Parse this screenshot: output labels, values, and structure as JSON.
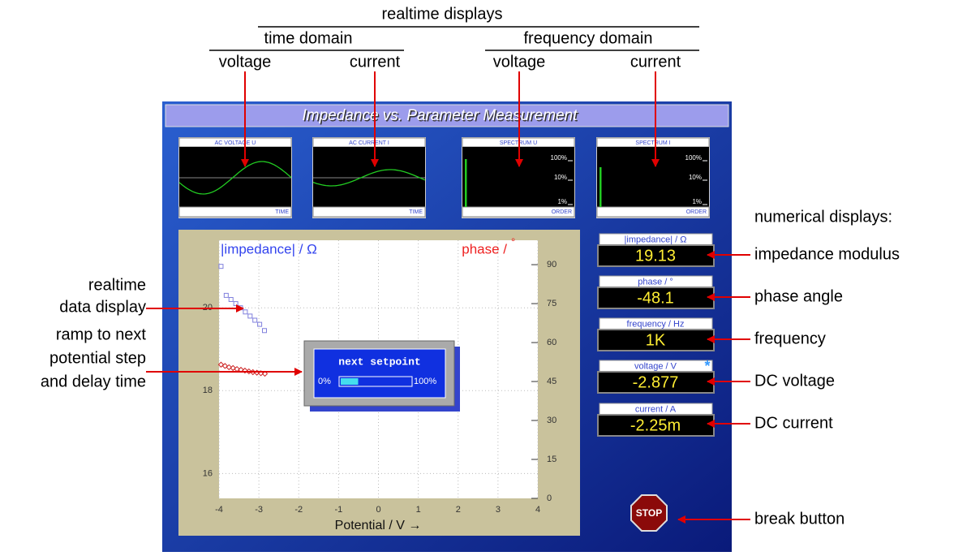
{
  "annotations": {
    "top": {
      "realtime": "realtime displays",
      "time_domain": "time domain",
      "frequency_domain": "frequency domain",
      "labels": [
        "voltage",
        "current",
        "voltage",
        "current"
      ]
    },
    "left": {
      "data_display": [
        "realtime",
        "data display"
      ],
      "ramp": [
        "ramp to next",
        "potential step",
        "and delay time"
      ]
    },
    "right": {
      "heading": "numerical displays:",
      "labels": [
        "impedance modulus",
        "phase angle",
        "frequency",
        "DC voltage",
        "DC current"
      ],
      "button": "break button"
    }
  },
  "window": {
    "title": "Impedance vs. Parameter Measurement",
    "mini_displays": [
      {
        "title": "AC VOLTAGE U",
        "footer": "TIME"
      },
      {
        "title": "AC CURRENT I",
        "footer": "TIME"
      },
      {
        "title": "SPECTRUM U",
        "footer": "ORDER",
        "ticks": [
          "100%",
          "10%",
          "1%"
        ]
      },
      {
        "title": "SPECTRUM I",
        "footer": "ORDER",
        "ticks": [
          "100%",
          "10%",
          "1%"
        ]
      }
    ],
    "readouts": [
      {
        "label": "|impedance| / Ω",
        "value": "19.13"
      },
      {
        "label": "phase / °",
        "value": "-48.1"
      },
      {
        "label": "frequency / Hz",
        "value": "1K"
      },
      {
        "label": "voltage / V",
        "value": "-2.877"
      },
      {
        "label": "current / A",
        "value": "-2.25m"
      }
    ],
    "asterisk": "*",
    "stop": "STOP"
  },
  "setpoint": {
    "title": "next setpoint",
    "min": "0%",
    "max": "100%",
    "progress": 25
  },
  "chart_data": {
    "type": "scatter",
    "ylabel": "|impedance| / Ω",
    "y2label": "phase /",
    "y2unit": "°",
    "xlabel": "Potential / V →",
    "xlim": [
      -4,
      4
    ],
    "xticks": [
      -4,
      -3,
      -2,
      -1,
      0,
      1,
      2,
      3,
      4
    ],
    "ylim": [
      15.4,
      21.63
    ],
    "yticks": [
      16,
      18,
      20
    ],
    "y2lim": [
      0,
      99.4
    ],
    "y2ticks": [
      0,
      15,
      30,
      45,
      60,
      75,
      90
    ],
    "grid": true,
    "series": [
      {
        "color": "#8080dd",
        "marker": "square",
        "x": [
          -3.95,
          -3.82,
          -3.7,
          -3.58,
          -3.46,
          -3.34,
          -3.22,
          -3.1,
          -2.98,
          -2.86
        ],
        "values": [
          21.0,
          20.3,
          20.2,
          20.1,
          20.0,
          19.9,
          19.8,
          19.7,
          19.6,
          19.45
        ]
      },
      {
        "color": "#cc2222",
        "marker": "diamond",
        "axis": "y2",
        "x": [
          -3.95,
          -3.85,
          -3.75,
          -3.65,
          -3.55,
          -3.45,
          -3.35,
          -3.25,
          -3.15,
          -3.05,
          -2.95,
          -2.85
        ],
        "values": [
          51.5,
          51.0,
          50.5,
          50.2,
          49.8,
          49.5,
          49.2,
          48.9,
          48.6,
          48.4,
          48.2,
          48.0
        ]
      }
    ]
  }
}
